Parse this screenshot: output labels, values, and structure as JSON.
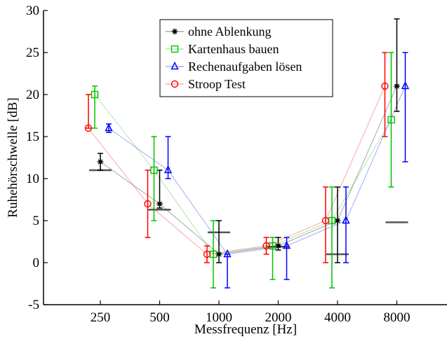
{
  "chart_data": {
    "type": "line",
    "title": "",
    "xlabel": "Messfrequenz [Hz]",
    "ylabel": "Ruhehörschwelle [dB]",
    "x_categories": [
      "250",
      "500",
      "1000",
      "2000",
      "4000",
      "8000"
    ],
    "ylim": [
      -5,
      30
    ],
    "yticks": [
      -5,
      0,
      5,
      10,
      15,
      20,
      25,
      30
    ],
    "grid": false,
    "legend_position": "top-center",
    "series": [
      {
        "name": "ohne Ablenkung",
        "color": "#000000",
        "marker": "star",
        "values": [
          12,
          7,
          1,
          2,
          5,
          21
        ],
        "err_low": [
          11,
          6.5,
          0,
          1.5,
          0,
          18
        ],
        "err_high": [
          13,
          11,
          5,
          3,
          9,
          29
        ]
      },
      {
        "name": "Kartenhaus bauen",
        "color": "#00c000",
        "marker": "square",
        "values": [
          20,
          11,
          1,
          2,
          5,
          17
        ],
        "err_low": [
          16,
          5,
          -3,
          -2,
          -3,
          9
        ],
        "err_high": [
          21,
          15,
          5,
          3,
          9,
          25
        ]
      },
      {
        "name": "Rechenaufgaben lösen",
        "color": "#0000ff",
        "marker": "triangle",
        "values": [
          16,
          11,
          1,
          2,
          5,
          21
        ],
        "err_low": [
          15.5,
          10,
          -3,
          -2,
          0,
          12
        ],
        "err_high": [
          16.5,
          15,
          1,
          3,
          9,
          25
        ]
      },
      {
        "name": "Stroop Test",
        "color": "#ff0000",
        "marker": "circle",
        "values": [
          16,
          7,
          1,
          2,
          5,
          21
        ],
        "err_low": [
          16,
          3,
          0,
          1,
          0,
          15
        ],
        "err_high": [
          20,
          11,
          2,
          3,
          9,
          25
        ]
      }
    ],
    "reference_threshold": {
      "color": "#555555",
      "values": [
        11,
        6.3,
        3.6,
        1.9,
        1.0,
        4.8
      ]
    }
  }
}
